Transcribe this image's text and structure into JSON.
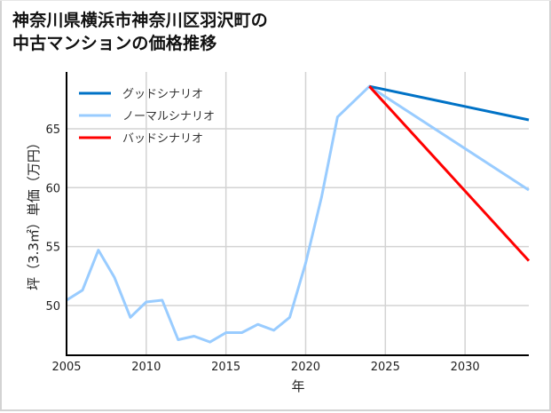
{
  "title": {
    "line1": "神奈川県横浜市神奈川区羽沢町の",
    "line2": "中古マンションの価格推移"
  },
  "chart_data": {
    "type": "line",
    "title": "神奈川県横浜市神奈川区羽沢町の中古マンションの価格推移",
    "xlabel": "年",
    "ylabel": "坪（3.3㎡）単価（万円）",
    "xlim": [
      2005,
      2034
    ],
    "ylim": [
      45.9,
      70.0
    ],
    "x_ticks": [
      2005,
      2010,
      2015,
      2020,
      2025,
      2030
    ],
    "y_ticks": [
      50,
      55,
      60,
      65
    ],
    "grid": true,
    "legend_position": "upper left",
    "series": [
      {
        "name": "グッドシナリオ",
        "color": "#0072c6",
        "x": [
          2024,
          2034
        ],
        "values": [
          68.6,
          65.75
        ]
      },
      {
        "name": "ノーマルシナリオ",
        "color": "#99ccff",
        "x": [
          2005,
          2006,
          2007,
          2008,
          2009,
          2010,
          2011,
          2012,
          2013,
          2014,
          2015,
          2016,
          2017,
          2018,
          2019,
          2020,
          2021,
          2022,
          2023,
          2024,
          2034
        ],
        "values": [
          50.45,
          51.3,
          54.7,
          52.4,
          49.0,
          50.3,
          50.45,
          47.1,
          47.4,
          46.9,
          47.7,
          47.7,
          48.4,
          47.9,
          49.0,
          53.6,
          59.2,
          66.0,
          67.3,
          68.6,
          59.8
        ]
      },
      {
        "name": "バッドシナリオ",
        "color": "#ff0000",
        "x": [
          2024,
          2034
        ],
        "values": [
          68.6,
          53.8
        ]
      }
    ]
  },
  "axes": {
    "xlabel": "年",
    "ylabel": "坪（3.3㎡）単価（万円）",
    "x_tick_labels": [
      "2005",
      "2010",
      "2015",
      "2020",
      "2025",
      "2030"
    ],
    "y_tick_labels": [
      "50",
      "55",
      "60",
      "65"
    ]
  },
  "legend": [
    {
      "label": "グッドシナリオ",
      "color": "#0072c6"
    },
    {
      "label": "ノーマルシナリオ",
      "color": "#99ccff"
    },
    {
      "label": "バッドシナリオ",
      "color": "#ff0000"
    }
  ],
  "colors": {
    "grid": "#d3d3d3",
    "axis": "#000000",
    "frame": "#d3d3d3"
  }
}
